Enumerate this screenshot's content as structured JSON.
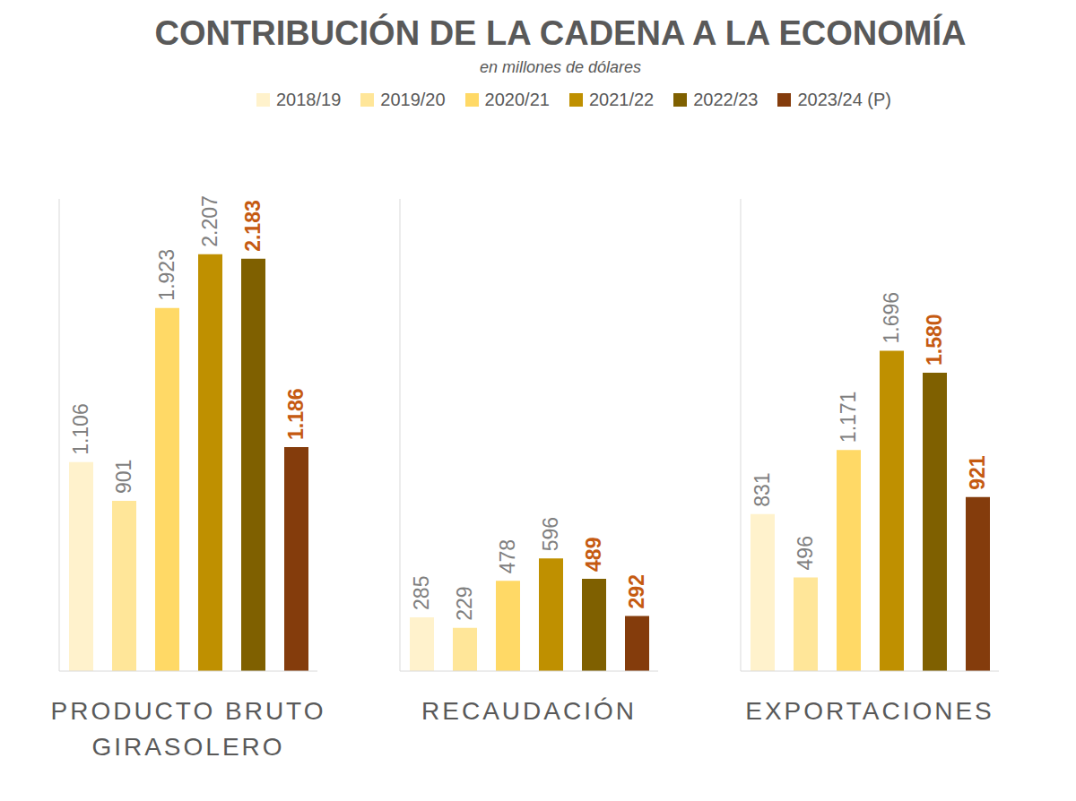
{
  "chart_data": {
    "type": "bar",
    "title": "CONTRIBUCIÓN DE LA CADENA A LA ECONOMÍA",
    "subtitle": "en millones de dólares",
    "categories": [
      "PRODUCTO BRUTO GIRASOLERO",
      "RECAUDACIÓN",
      "EXPORTACIONES"
    ],
    "series": [
      {
        "name": "2018/19",
        "color": "#FFF2CC",
        "values": [
          1106,
          285,
          831
        ],
        "value_labels": [
          "1.106",
          "285",
          "831"
        ]
      },
      {
        "name": "2019/20",
        "color": "#FFE699",
        "values": [
          901,
          229,
          496
        ],
        "value_labels": [
          "901",
          "229",
          "496"
        ]
      },
      {
        "name": "2020/21",
        "color": "#FFD966",
        "values": [
          1923,
          478,
          1171
        ],
        "value_labels": [
          "1.923",
          "478",
          "1.171"
        ]
      },
      {
        "name": "2021/22",
        "color": "#BF9000",
        "values": [
          2207,
          596,
          1696
        ],
        "value_labels": [
          "2.207",
          "596",
          "1.696"
        ]
      },
      {
        "name": "2022/23",
        "color": "#7F6000",
        "values": [
          2183,
          489,
          1580
        ],
        "value_labels": [
          "2.183",
          "489",
          "1.580"
        ]
      },
      {
        "name": "2023/24 (P)",
        "color": "#843C0C",
        "values": [
          1186,
          292,
          921
        ],
        "value_labels": [
          "1.186",
          "292",
          "921"
        ]
      }
    ],
    "ylim": [
      0,
      2500
    ],
    "yticks": [],
    "grid": false,
    "legend": "top",
    "data_labels": true,
    "tick_labels": false
  }
}
